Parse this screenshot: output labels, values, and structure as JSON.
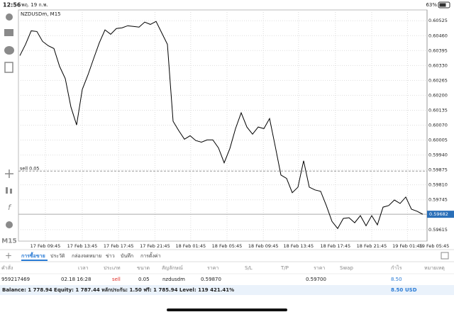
{
  "status_bar": {
    "time": "12:56",
    "date": "พฤ. 19 ก.พ.",
    "battery": "63%"
  },
  "toolbar": {
    "timeframe": "M15"
  },
  "chart_data": {
    "type": "line",
    "title": "NZDUSDm, M15",
    "color": "#000000",
    "values": [
      0.60373,
      0.60422,
      0.60481,
      0.60478,
      0.60435,
      0.60416,
      0.60404,
      0.60326,
      0.60273,
      0.60149,
      0.60071,
      0.60226,
      0.60289,
      0.6036,
      0.60429,
      0.60485,
      0.60466,
      0.60491,
      0.60494,
      0.60503,
      0.605,
      0.60497,
      0.60519,
      0.60509,
      0.60522,
      0.60472,
      0.60422,
      0.60087,
      0.60046,
      0.60009,
      0.60024,
      0.60003,
      0.59996,
      0.60006,
      0.60006,
      0.59971,
      0.59906,
      0.59968,
      0.60055,
      0.60124,
      0.60062,
      0.60031,
      0.60062,
      0.60055,
      0.60099,
      0.59978,
      0.59853,
      0.59838,
      0.59776,
      0.598,
      0.59915,
      0.598,
      0.59788,
      0.59782,
      0.5972,
      0.59651,
      0.5962,
      0.59664,
      0.59667,
      0.59645,
      0.59676,
      0.59632,
      0.59676,
      0.59636,
      0.59713,
      0.5972,
      0.59744,
      0.59729,
      0.59757,
      0.59704,
      0.59695,
      0.59682
    ],
    "xlim": [
      0,
      71
    ],
    "xticks": [
      {
        "value": 4.5,
        "label": "17 Feb 09:45"
      },
      {
        "value": 11,
        "label": "17 Feb 13:45"
      },
      {
        "value": 17.4,
        "label": "17 Feb 17:45"
      },
      {
        "value": 23.8,
        "label": "17 Feb 21:45"
      },
      {
        "value": 30.1,
        "label": "18 Feb 01:45"
      },
      {
        "value": 36.5,
        "label": "18 Feb 05:45"
      },
      {
        "value": 42.9,
        "label": "18 Feb 09:45"
      },
      {
        "value": 49.1,
        "label": "18 Feb 13:45"
      },
      {
        "value": 55.6,
        "label": "18 Feb 17:45"
      },
      {
        "value": 62,
        "label": "18 Feb 21:45"
      },
      {
        "value": 68.3,
        "label": "19 Feb 01:45"
      },
      {
        "value": 75,
        "label": "19 Feb 05:45"
      }
    ],
    "ylim": [
      0.59565,
      0.60572
    ],
    "yticks": [
      0.60525,
      {
        "value": 0.6046,
        "label": "0.60460"
      },
      0.60395,
      {
        "value": 0.6033,
        "label": "0.60330"
      },
      0.60265,
      {
        "value": 0.602,
        "label": "0.60200"
      },
      0.60135,
      {
        "value": 0.6007,
        "label": "0.60070"
      },
      0.60005,
      {
        "value": 0.5994,
        "label": "0.59940"
      },
      0.59875,
      {
        "value": 0.5981,
        "label": "0.59810"
      },
      0.59745,
      0.59615
    ],
    "grid": true,
    "annotations": [
      {
        "text": "sell 0.05",
        "value": 0.5987
      }
    ],
    "current_price": 0.59682
  },
  "tabs": [
    "การซื้อขาย",
    "ประวัติ",
    "กล่องจดหมาย",
    "ข่าว",
    "บันทึก",
    "การตั้งค่า"
  ],
  "table": {
    "headers": [
      "คำสั่ง",
      "เวลา",
      "ประเภท",
      "ขนาด",
      "สัญลักษณ์",
      "ราคา",
      "S/L",
      "T/P",
      "ราคา",
      "Swap",
      "กำไร",
      "หมายเหตุ"
    ],
    "row": {
      "order": "959217469",
      "time": "02.18 16:28",
      "type": "sell",
      "size": "0.05",
      "symbol": "nzdusdm",
      "price": "0.59870",
      "current": "0.59700",
      "profit": "8.50"
    }
  },
  "balance": {
    "text": "Balance: 1 778.94 Equity: 1 787.44 หลักประกัน: 1.50 ฟรี: 1 785.94 Level: 119 421.41%",
    "profit": "8.50",
    "currency": "USD"
  }
}
